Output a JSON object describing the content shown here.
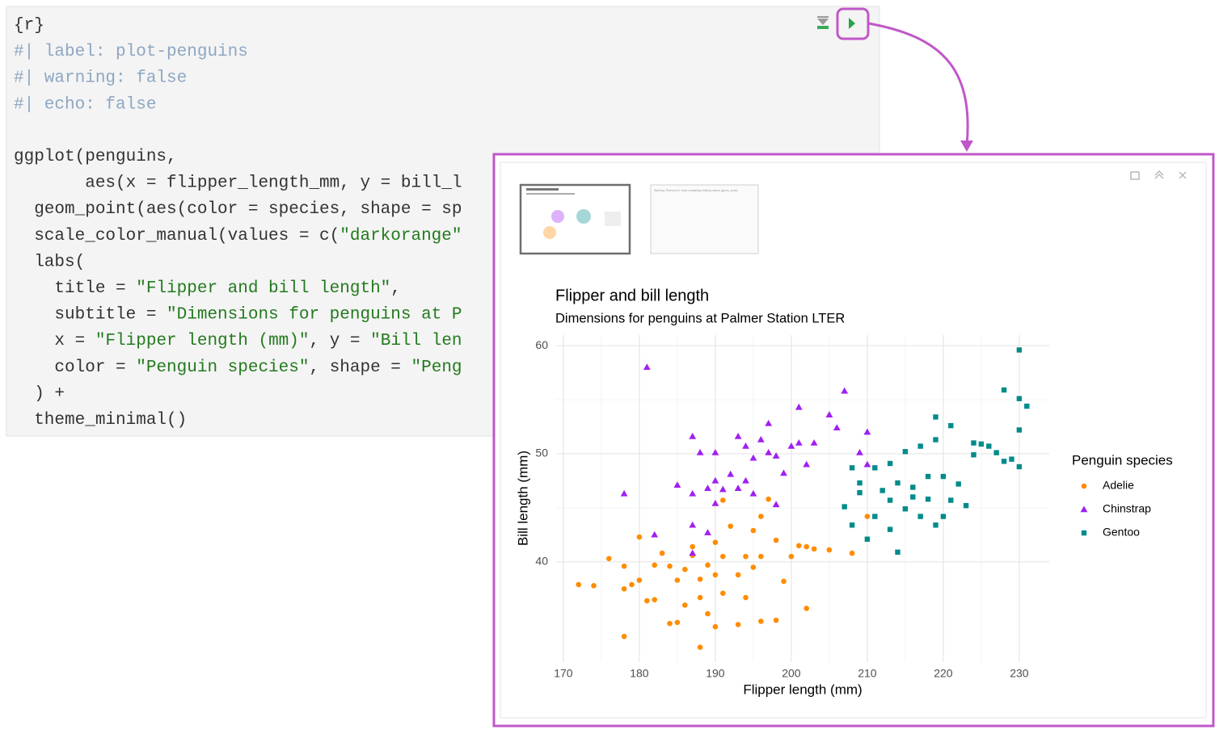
{
  "editor": {
    "options": [
      "{r}",
      "#| label: plot-penguins",
      "#| warning: false",
      "#| echo: false"
    ],
    "code": [
      "ggplot(penguins,",
      "       aes(x = flipper_length_mm, y = bill_l",
      "  geom_point(aes(color = species, shape = sp",
      "  scale_color_manual(values = c(\"darkorange\"",
      "  labs(",
      "    title = \"Flipper and bill length\",",
      "    subtitle = \"Dimensions for penguins at P",
      "    x = \"Flipper length (mm)\", y = \"Bill len",
      "    color = \"Penguin species\", shape = \"Peng",
      "  ) +",
      "  theme_minimal()"
    ]
  },
  "thumbnails": [
    {
      "text": "Warning: Removed 2 rows containing missing values (geom_point)."
    }
  ],
  "chart_data": {
    "type": "scatter",
    "title": "Flipper and bill length",
    "subtitle": "Dimensions for penguins at Palmer Station LTER",
    "x_label": "Flipper length (mm)",
    "y_label": "Bill length (mm)",
    "legend_title": "Penguin species",
    "legend": "right",
    "grid": true,
    "minor_grid": true,
    "xlim": [
      169.05,
      233.95
    ],
    "ylim": [
      30.725,
      60.975
    ],
    "xticks": [
      170,
      180,
      190,
      200,
      210,
      220,
      230
    ],
    "yticks": [
      40,
      50,
      60
    ],
    "series": [
      {
        "name": "Adelie",
        "color": "#ff8c00",
        "shape": "circle",
        "x": [
          172,
          174,
          176,
          178,
          178,
          178,
          180,
          180,
          181,
          182,
          182,
          183,
          184,
          185,
          185,
          186,
          186,
          187,
          188,
          188,
          189,
          189,
          190,
          190,
          190,
          191,
          191,
          192,
          193,
          193,
          194,
          194,
          195,
          195,
          196,
          196,
          197,
          198,
          198,
          199,
          200,
          201,
          202,
          202,
          203,
          205,
          208,
          210,
          191,
          196,
          184,
          179,
          188,
          187
        ],
        "y": [
          37.9,
          37.8,
          40.3,
          33.1,
          37.5,
          39.6,
          42.3,
          38.3,
          36.4,
          36.5,
          39.7,
          40.8,
          39.6,
          34.4,
          38.3,
          36,
          39.3,
          41.4,
          32.1,
          36.7,
          39.7,
          35.2,
          41.8,
          38.8,
          34,
          40.5,
          37.1,
          43.3,
          34.2,
          38.8,
          36.7,
          40.5,
          42.9,
          39.5,
          44.2,
          40.5,
          45.8,
          34.6,
          42,
          38.2,
          40.5,
          41.5,
          35.7,
          41.4,
          41.2,
          41.1,
          40.8,
          44.2,
          45.7,
          34.5,
          34.3,
          37.9,
          38.4,
          40.6
        ]
      },
      {
        "name": "Chinstrap",
        "color": "#a020f0",
        "shape": "triangle",
        "x": [
          181,
          178,
          182,
          185,
          187,
          187,
          187,
          187,
          188,
          189,
          190,
          190,
          191,
          192,
          193,
          193,
          194,
          195,
          195,
          196,
          197,
          197,
          198,
          198,
          199,
          200,
          201,
          201,
          202,
          203,
          205,
          206,
          207,
          210,
          210,
          209,
          190,
          189,
          194
        ],
        "y": [
          58,
          46.3,
          42.5,
          47.1,
          51.6,
          46.3,
          43.4,
          40.8,
          50.1,
          46.8,
          50.1,
          45.4,
          46.7,
          48.1,
          51.6,
          46.8,
          50.7,
          49.6,
          46.3,
          51.3,
          52.8,
          50.1,
          49.8,
          45.3,
          48.2,
          50.7,
          54.3,
          51,
          49,
          51,
          53.6,
          52.4,
          55.8,
          52,
          49,
          50.1,
          47.5,
          42.7,
          47.5
        ]
      },
      {
        "name": "Gentoo",
        "color": "#008b8b",
        "shape": "square",
        "x": [
          230,
          228,
          230,
          231,
          230,
          230,
          228,
          226,
          224,
          219,
          221,
          219,
          217,
          215,
          213,
          211,
          209,
          208,
          207,
          208,
          210,
          211,
          213,
          214,
          215,
          216,
          217,
          218,
          219,
          220,
          221,
          222,
          223,
          224,
          225,
          220,
          218,
          216,
          213,
          212,
          209,
          214,
          227,
          229
        ],
        "y": [
          59.6,
          55.9,
          55.1,
          54.4,
          52.2,
          48.8,
          49.3,
          50.7,
          51,
          53.4,
          52.6,
          51.3,
          50.7,
          50.2,
          49.1,
          48.7,
          47.3,
          48.7,
          45.1,
          43.4,
          42.1,
          44.2,
          43,
          40.9,
          44.9,
          46.9,
          44.2,
          45.8,
          43.4,
          44.2,
          45.7,
          47.2,
          45.2,
          49.9,
          50.9,
          47.9,
          47.9,
          46,
          45.7,
          46.6,
          46.4,
          47.3,
          50.1,
          49.5
        ]
      }
    ]
  }
}
